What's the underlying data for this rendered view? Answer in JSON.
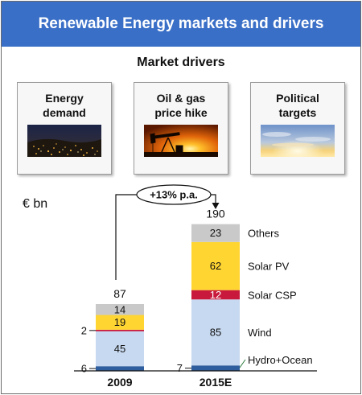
{
  "header": {
    "title": "Renewable Energy markets and drivers"
  },
  "drivers": {
    "title": "Market drivers",
    "cards": [
      {
        "label": "Energy\ndemand",
        "image": "city-night-image"
      },
      {
        "label": "Oil & gas\nprice hike",
        "image": "oil-pump-sunset-image"
      },
      {
        "label": "Political\ntargets",
        "image": "sky-sunrise-image"
      }
    ]
  },
  "chart_data": {
    "type": "bar",
    "stacked": true,
    "unit_label": "€ bn",
    "categories": [
      "2009",
      "2015E"
    ],
    "series": [
      {
        "name": "Hydro+Ocean",
        "values": [
          6,
          7
        ],
        "color": "#2f5e9f",
        "label_color": "#ffffff"
      },
      {
        "name": "Wind",
        "values": [
          45,
          85
        ],
        "color": "#c7d9f0",
        "label_color": "#111111"
      },
      {
        "name": "Solar CSP",
        "values": [
          2,
          12
        ],
        "color": "#c8193c",
        "label_color": "#ffffff"
      },
      {
        "name": "Solar PV",
        "values": [
          19,
          62
        ],
        "color": "#ffd532",
        "label_color": "#111111"
      },
      {
        "name": "Others",
        "values": [
          14,
          23
        ],
        "color": "#c9c9c9",
        "label_color": "#111111"
      }
    ],
    "totals": [
      "87",
      "190"
    ],
    "growth_label": "+13% p.a.",
    "legend_position": "right"
  }
}
